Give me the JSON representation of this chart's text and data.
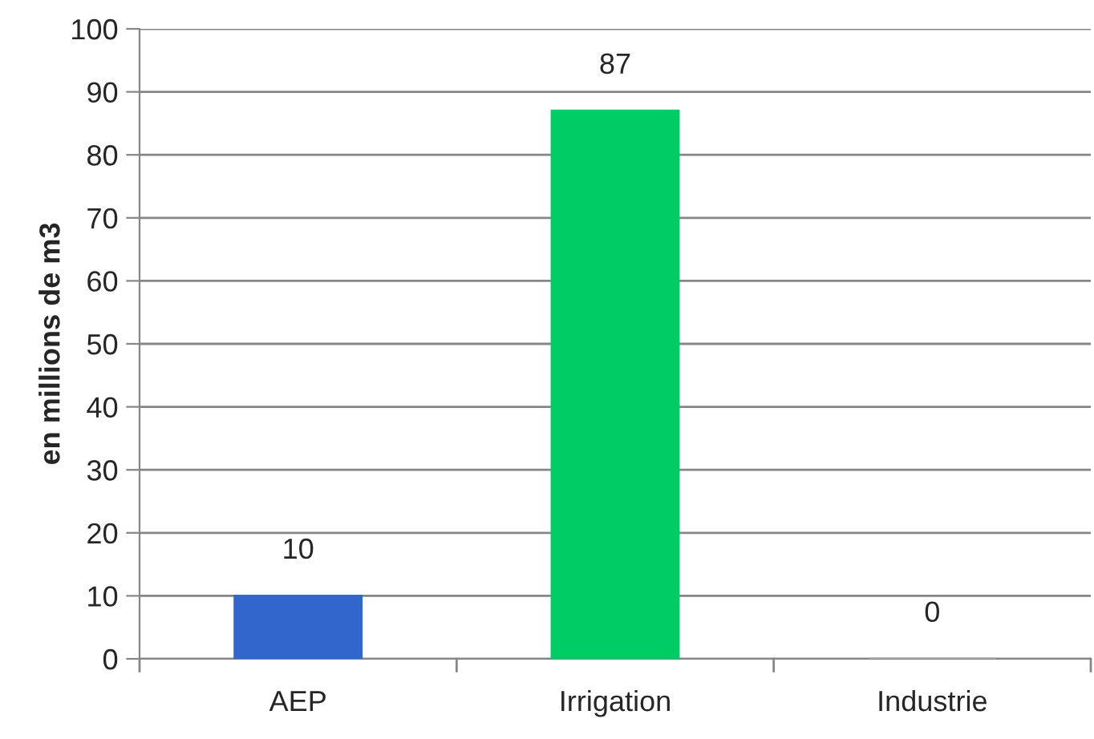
{
  "chart_data": {
    "type": "bar",
    "ylabel": "en millions de m3",
    "categories": [
      "AEP",
      "Irrigation",
      "Industrie"
    ],
    "values": [
      10,
      87,
      0
    ],
    "colors": [
      "#3366cc",
      "#00cc66",
      "#a6a6a6"
    ],
    "ylim": [
      0,
      100
    ],
    "yticks": [
      0,
      10,
      20,
      30,
      40,
      50,
      60,
      70,
      80,
      90,
      100
    ],
    "grid": "y",
    "data_labels": true
  }
}
